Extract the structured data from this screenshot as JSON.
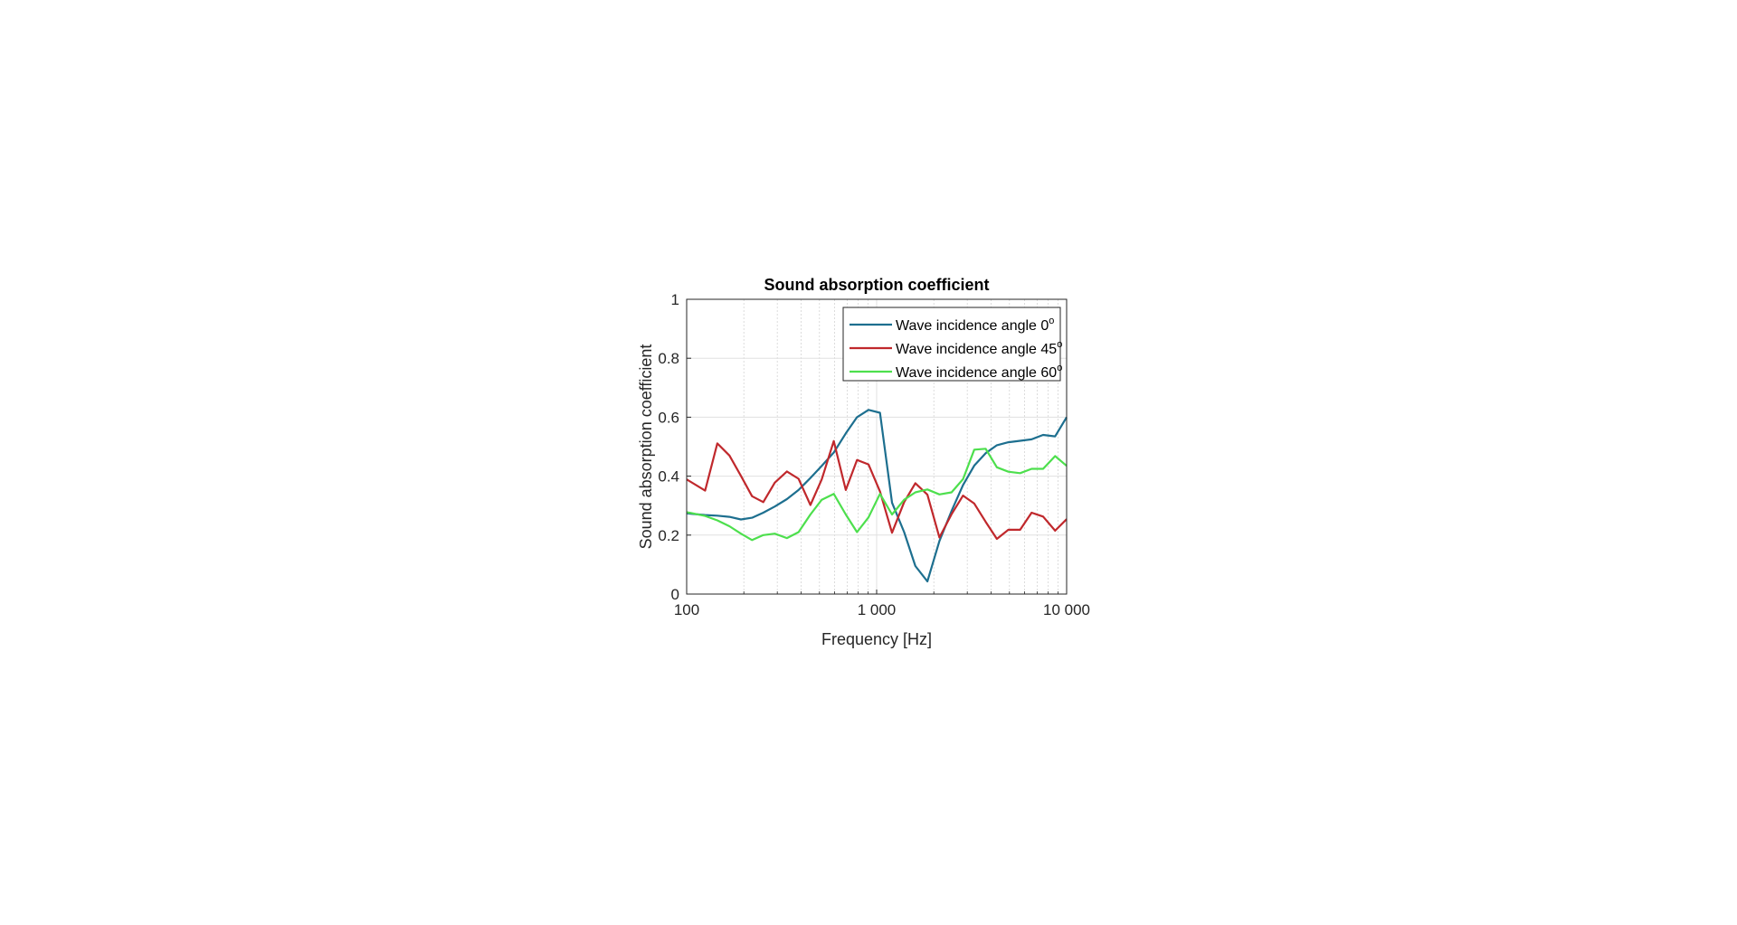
{
  "chart_data": {
    "type": "line",
    "title": "Sound absorption coefficient",
    "xlabel": "Frequency [Hz]",
    "ylabel": "Sound absorption coefficient",
    "xscale": "log",
    "xlim": [
      100,
      10000
    ],
    "ylim": [
      0,
      1
    ],
    "xticks": [
      100,
      1000,
      10000
    ],
    "xtick_labels": [
      "100",
      "1 000",
      "10 000"
    ],
    "yticks": [
      0,
      0.2,
      0.4,
      0.6,
      0.8,
      1
    ],
    "ytick_labels": [
      "0",
      "0.2",
      "0.4",
      "0.6",
      "0.8",
      "1"
    ],
    "grid": true,
    "minor_grid": true,
    "legend_position": "top-right",
    "x": [
      100,
      125,
      145,
      168,
      193,
      221,
      253,
      291,
      337,
      388,
      448,
      514,
      595,
      688,
      788,
      906,
      1041,
      1205,
      1395,
      1598,
      1849,
      2141,
      2480,
      2850,
      3263,
      3749,
      4294,
      4934,
      5691,
      6540,
      7516,
      8700,
      10000
    ],
    "series": [
      {
        "name": "Wave incidence angle 0",
        "superscript": "o",
        "color": "#1d6f8f",
        "values": [
          0.274,
          0.268,
          0.266,
          0.262,
          0.253,
          0.259,
          0.276,
          0.297,
          0.322,
          0.353,
          0.394,
          0.435,
          0.48,
          0.545,
          0.6,
          0.625,
          0.615,
          0.31,
          0.21,
          0.095,
          0.043,
          0.18,
          0.282,
          0.37,
          0.436,
          0.478,
          0.505,
          0.515,
          0.52,
          0.525,
          0.54,
          0.535,
          0.6
        ]
      },
      {
        "name": "Wave incidence angle 45",
        "superscript": "o",
        "color": "#c0282c",
        "values": [
          0.389,
          0.351,
          0.511,
          0.47,
          0.401,
          0.332,
          0.312,
          0.378,
          0.416,
          0.391,
          0.302,
          0.389,
          0.519,
          0.353,
          0.455,
          0.44,
          0.348,
          0.208,
          0.312,
          0.376,
          0.337,
          0.192,
          0.271,
          0.334,
          0.307,
          0.245,
          0.187,
          0.218,
          0.218,
          0.276,
          0.263,
          0.215,
          0.254
        ]
      },
      {
        "name": "Wave incidence angle 60",
        "superscript": "o",
        "color": "#4ddf4d",
        "values": [
          0.278,
          0.265,
          0.25,
          0.23,
          0.205,
          0.183,
          0.2,
          0.205,
          0.19,
          0.21,
          0.27,
          0.32,
          0.34,
          0.27,
          0.21,
          0.26,
          0.34,
          0.27,
          0.32,
          0.345,
          0.355,
          0.338,
          0.345,
          0.39,
          0.49,
          0.493,
          0.43,
          0.415,
          0.41,
          0.425,
          0.425,
          0.468,
          0.435
        ]
      }
    ]
  }
}
